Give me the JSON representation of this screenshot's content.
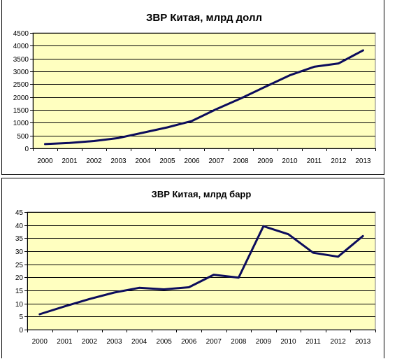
{
  "colors": {
    "plot_background": "#FFFFC0",
    "grid": "#000000",
    "line": "#0C0C5C",
    "text": "#000000"
  },
  "chart_data": [
    {
      "type": "line",
      "title": "ЗВР Китая, млрд долл",
      "xlabel": "",
      "ylabel": "",
      "x": [
        "2000",
        "2001",
        "2002",
        "2003",
        "2004",
        "2005",
        "2006",
        "2007",
        "2008",
        "2009",
        "2010",
        "2011",
        "2012",
        "2013"
      ],
      "y_ticks": [
        "0",
        "500",
        "1000",
        "1500",
        "2000",
        "2500",
        "3000",
        "3500",
        "4000",
        "4500"
      ],
      "ylim": [
        0,
        4500
      ],
      "grid": true,
      "legend": "none",
      "series": [
        {
          "values": [
            166,
            212,
            286,
            403,
            610,
            819,
            1066,
            1528,
            1946,
            2399,
            2847,
            3181,
            3312,
            3821
          ]
        }
      ]
    },
    {
      "type": "line",
      "title": "ЗВР Китая, млрд барр",
      "xlabel": "",
      "ylabel": "",
      "x": [
        "2000",
        "2001",
        "2002",
        "2003",
        "2004",
        "2005",
        "2006",
        "2007",
        "2008",
        "2009",
        "2010",
        "2011",
        "2012",
        "2013"
      ],
      "y_ticks": [
        "0",
        "5",
        "10",
        "15",
        "20",
        "25",
        "30",
        "35",
        "40",
        "45"
      ],
      "ylim": [
        0,
        45
      ],
      "grid": true,
      "legend": "none",
      "series": [
        {
          "values": [
            5.9,
            8.9,
            11.7,
            14.2,
            16.0,
            15.4,
            16.2,
            21.0,
            19.9,
            39.6,
            36.5,
            29.4,
            27.9,
            35.8
          ]
        }
      ]
    }
  ]
}
